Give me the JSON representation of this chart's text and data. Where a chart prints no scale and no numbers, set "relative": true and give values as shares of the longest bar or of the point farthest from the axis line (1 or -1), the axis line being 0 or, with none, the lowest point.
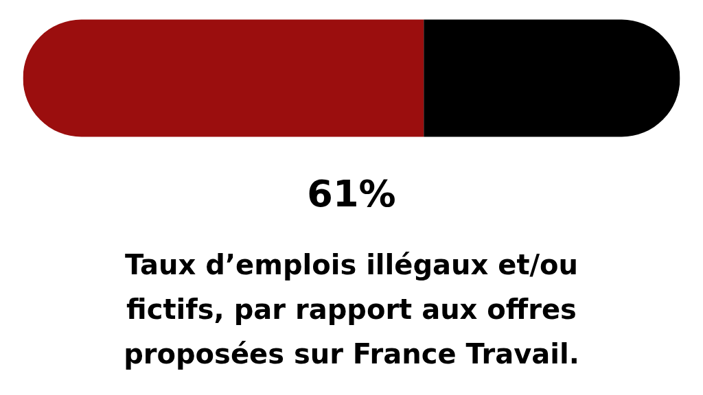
{
  "chart_data": {
    "type": "bar",
    "orientation": "horizontal",
    "stacked": true,
    "relative": true,
    "categories": [
      null
    ],
    "series": [
      {
        "color": "#9b0e0e",
        "values": [
          0.61
        ]
      },
      {
        "color": "#000000",
        "values": [
          0.39
        ]
      }
    ],
    "grid": false,
    "annotations": [
      "61%",
      "Taux d’emplois illégaux et/ou fictifs, par rapport aux offres proposées sur France Travail."
    ]
  }
}
